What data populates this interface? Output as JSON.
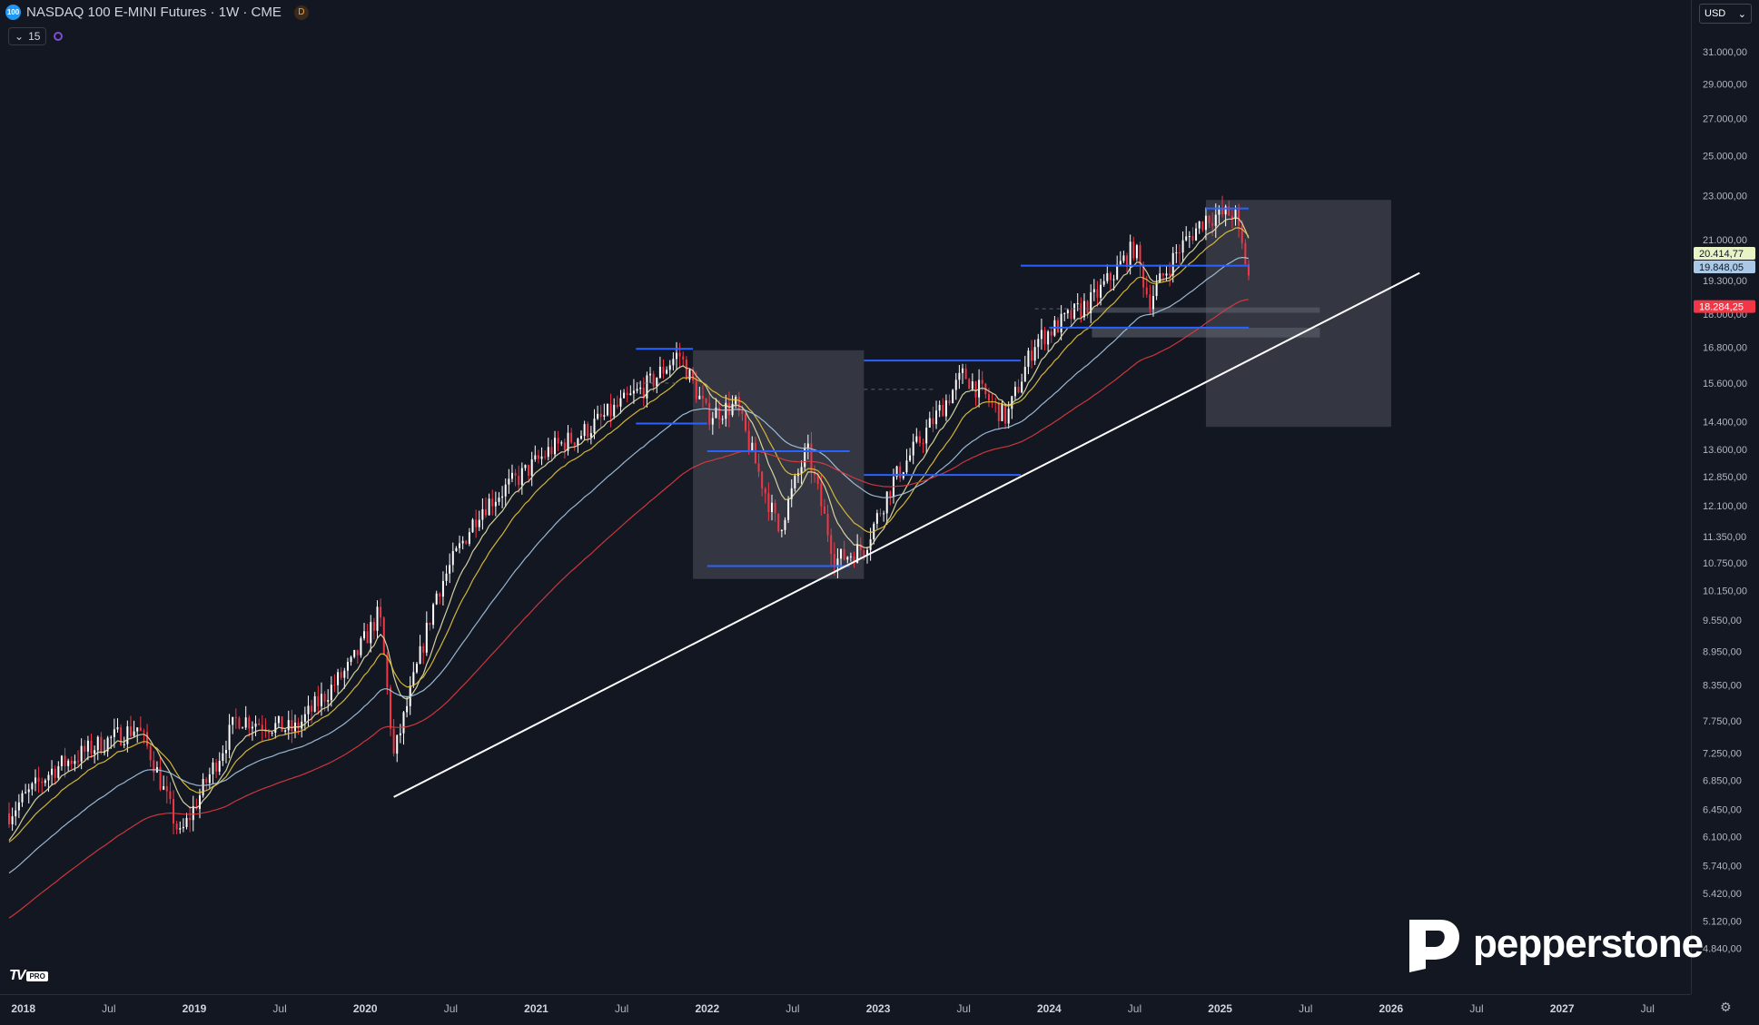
{
  "header": {
    "symbol_badge": "100",
    "title": "NASDAQ 100 E-MINI Futures · 1W · CME",
    "data_badge": "D",
    "indicators_count": "15"
  },
  "currency": "USD",
  "colors": {
    "background": "#131722",
    "bull": "#ffffff",
    "bear": "#f23645",
    "ema_fast": "#e8e3ab",
    "ema_mid": "#e7c53a",
    "ema_slow": "#a9c9e6",
    "ema_long": "#e03a3e",
    "levels": "#2962ff",
    "trendline": "#ffffff",
    "zones": "#5d606b"
  },
  "price_axis": {
    "labels": [
      "31.000,00",
      "29.000,00",
      "27.000,00",
      "25.000,00",
      "23.000,00",
      "21.000,00",
      "19.300,00",
      "18.000,00",
      "16.800,00",
      "15.600,00",
      "14.400,00",
      "13.600,00",
      "12.850,00",
      "12.100,00",
      "11.350,00",
      "10.750,00",
      "10.150,00",
      "9.550,00",
      "8.950,00",
      "8.350,00",
      "7.750,00",
      "7.250,00",
      "6.850,00",
      "6.450,00",
      "6.100,00",
      "5.740,00",
      "5.420,00",
      "5.120,00",
      "4.840,00"
    ],
    "price_badges": [
      {
        "label": "20.414,77",
        "value": 20414.77,
        "bg": "#e8f3c6",
        "fg": "#131722"
      },
      {
        "label": "19.848,05",
        "value": 19848.05,
        "bg": "#a9c9e6",
        "fg": "#131722"
      },
      {
        "label": "18.284,25",
        "value": 18284.25,
        "bg": "#f23645",
        "fg": "#ffffff"
      }
    ]
  },
  "time_axis": {
    "labels": [
      "2018",
      "Jul",
      "2019",
      "Jul",
      "2020",
      "Jul",
      "2021",
      "Jul",
      "2022",
      "Jul",
      "2023",
      "Jul",
      "2024",
      "Jul",
      "2025",
      "Jul",
      "2026",
      "Jul",
      "2027",
      "Jul"
    ]
  },
  "chart_data": {
    "type": "candlestick",
    "y_scale": "log",
    "ylim": [
      4700,
      32000
    ],
    "xlim": [
      "2017-12",
      "2027-08"
    ],
    "candles": {
      "interval": "1W",
      "anchors": [
        [
          "2017-12",
          6400
        ],
        [
          "2018-03",
          7000
        ],
        [
          "2018-06",
          7350
        ],
        [
          "2018-09",
          7650
        ],
        [
          "2018-10",
          7200
        ],
        [
          "2018-12",
          6100
        ],
        [
          "2019-04",
          7800
        ],
        [
          "2019-08",
          7600
        ],
        [
          "2019-12",
          8700
        ],
        [
          "2020-02",
          9700
        ],
        [
          "2020-03",
          7200
        ],
        [
          "2020-06",
          10100
        ],
        [
          "2020-09",
          12000
        ],
        [
          "2020-12",
          12900
        ],
        [
          "2021-02",
          13600
        ],
        [
          "2021-04",
          14000
        ],
        [
          "2021-09",
          15600
        ],
        [
          "2021-11",
          16600
        ],
        [
          "2022-01",
          14600
        ],
        [
          "2022-03",
          14900
        ],
        [
          "2022-06",
          11500
        ],
        [
          "2022-08",
          13600
        ],
        [
          "2022-10",
          10800
        ],
        [
          "2022-12",
          11100
        ],
        [
          "2023-02",
          12700
        ],
        [
          "2023-07",
          15900
        ],
        [
          "2023-10",
          14500
        ],
        [
          "2023-12",
          17000
        ],
        [
          "2024-04",
          18500
        ],
        [
          "2024-07",
          20700
        ],
        [
          "2024-08",
          18500
        ],
        [
          "2024-10",
          20500
        ],
        [
          "2024-12",
          22000
        ],
        [
          "2025-02",
          22200
        ],
        [
          "2025-03",
          19500
        ]
      ]
    },
    "moving_averages": [
      {
        "id": "ema_fast",
        "period": 10
      },
      {
        "id": "ema_mid",
        "period": 20
      },
      {
        "id": "ema_slow",
        "period": 50
      },
      {
        "id": "ema_long",
        "period": 100
      }
    ],
    "horizontal_levels": [
      {
        "price": 16750,
        "from": "2021-08",
        "to": "2021-12"
      },
      {
        "price": 14350,
        "from": "2021-08",
        "to": "2022-01"
      },
      {
        "price": 13550,
        "from": "2022-01",
        "to": "2022-11"
      },
      {
        "price": 10680,
        "from": "2022-01",
        "to": "2022-11"
      },
      {
        "price": 16350,
        "from": "2022-12",
        "to": "2023-11"
      },
      {
        "price": 12900,
        "from": "2022-12",
        "to": "2023-11"
      },
      {
        "price": 19900,
        "from": "2023-11",
        "to": "2025-03"
      },
      {
        "price": 17500,
        "from": "2024-01",
        "to": "2025-03"
      },
      {
        "price": 22400,
        "from": "2024-12",
        "to": "2025-03"
      }
    ],
    "dashed_levels": [
      {
        "price": 15600,
        "from": "2021-08",
        "to": "2021-11"
      },
      {
        "price": 15400,
        "from": "2022-12",
        "to": "2023-05"
      },
      {
        "price": 18200,
        "from": "2023-12",
        "to": "2024-04"
      }
    ],
    "zones": [
      {
        "from": "2021-12",
        "to": "2022-12",
        "top": 16700,
        "bottom": 10400
      },
      {
        "from": "2024-12",
        "to": "2026-01",
        "top": 22800,
        "bottom": 14250
      },
      {
        "from": "2024-04",
        "to": "2025-08",
        "top": 18250,
        "bottom": 18050
      },
      {
        "from": "2024-04",
        "to": "2025-08",
        "top": 17500,
        "bottom": 17150
      }
    ],
    "trendline": {
      "from": [
        "2020-03",
        6620
      ],
      "to": [
        "2026-03",
        19600
      ]
    }
  }
}
